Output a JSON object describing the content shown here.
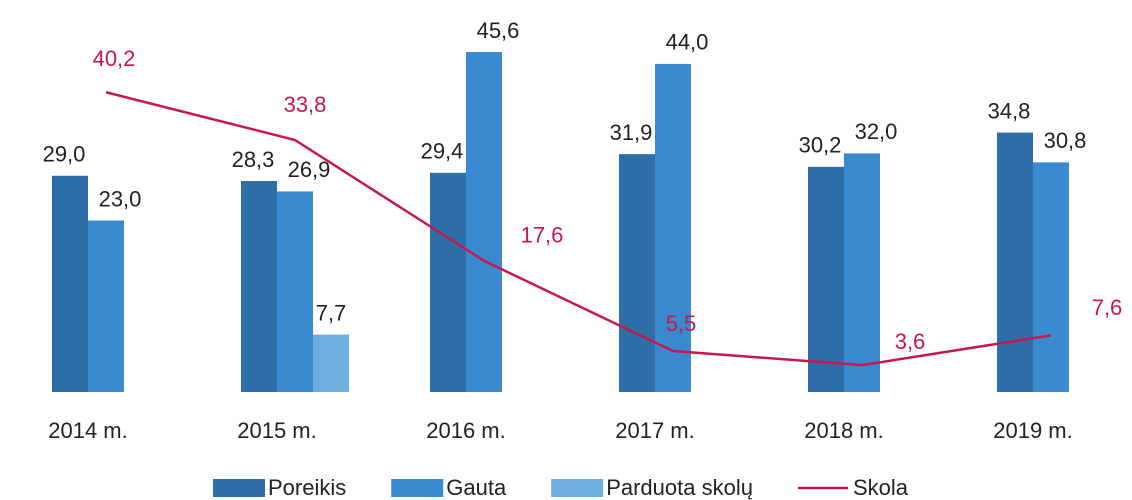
{
  "chart_data": {
    "type": "bar",
    "categories": [
      "2014 m.",
      "2015 m.",
      "2016 m.",
      "2017 m.",
      "2018 m.",
      "2019 m."
    ],
    "ylim": [
      0,
      52
    ],
    "series": [
      {
        "name": "Poreikis",
        "color": "#2e6fa8",
        "values": [
          29.0,
          28.3,
          29.4,
          31.9,
          30.2,
          34.8
        ],
        "value_labels": [
          "29,0",
          "28,3",
          "29,4",
          "31,9",
          "30,2",
          "34,8"
        ]
      },
      {
        "name": "Gauta",
        "color": "#3a8ad0",
        "values": [
          23.0,
          26.9,
          45.6,
          44.0,
          32.0,
          30.8
        ],
        "value_labels": [
          "23,0",
          "26,9",
          "45,6",
          "44,0",
          "32,0",
          "30,8"
        ]
      },
      {
        "name": "Parduota skolų",
        "color": "#6eaedf",
        "values": [
          null,
          7.7,
          null,
          null,
          null,
          null
        ],
        "value_labels": [
          null,
          "7,7",
          null,
          null,
          null,
          null
        ]
      },
      {
        "name": "Skola",
        "type": "line",
        "color": "#c8174f",
        "values": [
          40.2,
          33.8,
          17.6,
          5.5,
          3.6,
          7.6
        ],
        "value_labels": [
          "40,2",
          "33,8",
          "17,6",
          "5,5",
          "3,6",
          "7,6"
        ]
      }
    ],
    "legend": "bottom"
  }
}
